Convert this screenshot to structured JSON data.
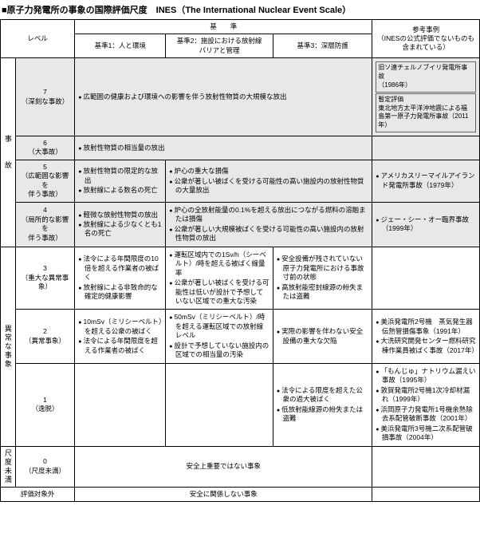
{
  "title": "■原子力発電所の事象の国際評価尺度　INES（The International Nuclear Event Scale）",
  "headers": {
    "level": "レベル",
    "criteria": "基　　準",
    "c1": "基準1：人と環境",
    "c2": "基準2：施設における放射線\nバリアと管理",
    "c3": "基準3：深層防護",
    "examples": "参考事例\n（INESの公式評価でないものも\n含まれている）"
  },
  "cat": {
    "accident": "事　　故",
    "incident": "異常な事象",
    "below": "尺度未満"
  },
  "rows": {
    "l7": {
      "level": "7\n（深刻な事故）",
      "c1": [
        "広範囲の健康および環境への影響を伴う放射性物質の大規模な放出"
      ],
      "ex_a": "旧ソ連チェルノブイリ発電所事故\n（1986年）",
      "ex_b": "暫定評価\n東北地方太平洋沖地震による福島第一原子力発電所事故（2011年）"
    },
    "l6": {
      "level": "6\n（大事故）",
      "c1": [
        "放射性物質の相当量の放出"
      ]
    },
    "l5": {
      "level": "5\n（広範囲な影響を\n伴う事故）",
      "c1": [
        "放射性物質の限定的な放出",
        "放射線による数名の死亡"
      ],
      "c2": [
        "炉心の重大な損傷",
        "公衆が著しい被ばくを受ける可能性の高い施設内の放射性物質の大量放出"
      ],
      "ex": [
        "アメリカスリーマイルアイランド発電所事故（1979年）"
      ]
    },
    "l4": {
      "level": "4\n（局所的な影響を\n伴う事故）",
      "c1": [
        "軽微な放射性物質の放出",
        "放射線による少なくとも1名の死亡"
      ],
      "c2": [
        "炉心の全放射能量の0.1%を超える放出につながる燃料の溶融または損傷",
        "公衆が著しい大規模被ばくを受ける可能性の高い施設内の放射性物質の放出"
      ],
      "ex": [
        "ジェー・シー・オー臨界事故\n（1999年）"
      ]
    },
    "l3": {
      "level": "3\n（重大な異常事象）",
      "c1": [
        "法令による年間限度の10倍を超える作業者の被ばく",
        "放射線による非致命的な確定的健康影響"
      ],
      "c2": [
        "運転区域内での1Sv/h（シーベルト）/時を超える被ばく線量率",
        "公衆が著しい被ばくを受ける可能性は低いが設計で予想していない区域での重大な汚染"
      ],
      "c3": [
        "安全設備が残されていない原子力発電所における事故寸前の状態",
        "高放射能密封線源の紛失または盗難"
      ],
      "ex": []
    },
    "l2": {
      "level": "2\n（異常事象）",
      "c1": [
        "10mSv（ミリシーベルト）を超える公衆の被ばく",
        "法令による年間限度を超える作業者の被ばく"
      ],
      "c2": [
        "50mSv（ミリシーベルト）/時を超える運転区域での放射線レベル",
        "設計で予想していない施設内の区域での相当量の汚染"
      ],
      "c3": [
        "実際の影響を伴わない安全設備の重大な欠陥"
      ],
      "ex": [
        "美浜発電所2号機　蒸気発生器伝熱管損傷事象（1991年）",
        "大洗研究開発センター燃料研究棟作業員被ばく事故（2017年）"
      ]
    },
    "l1": {
      "level": "1\n（逸脱）",
      "c3": [
        "法令による限度を超えた公衆の過大被ばく",
        "低放射能線源の紛失または盗難"
      ],
      "ex": [
        "「もんじゅ」ナトリウム漏えい事故（1995年）",
        "敦賀発電所2号機1次冷却材漏れ（1999年）",
        "浜岡原子力発電所1号機余熱除去系配管破断事故（2001年）",
        "美浜発電所3号機二次系配管破損事故（2004年）"
      ]
    },
    "l0": {
      "level": "0\n（尺度未満）",
      "text": "安全上重要ではない事象"
    },
    "out": {
      "label": "評価対象外",
      "text": "安全に関係しない事象"
    }
  }
}
